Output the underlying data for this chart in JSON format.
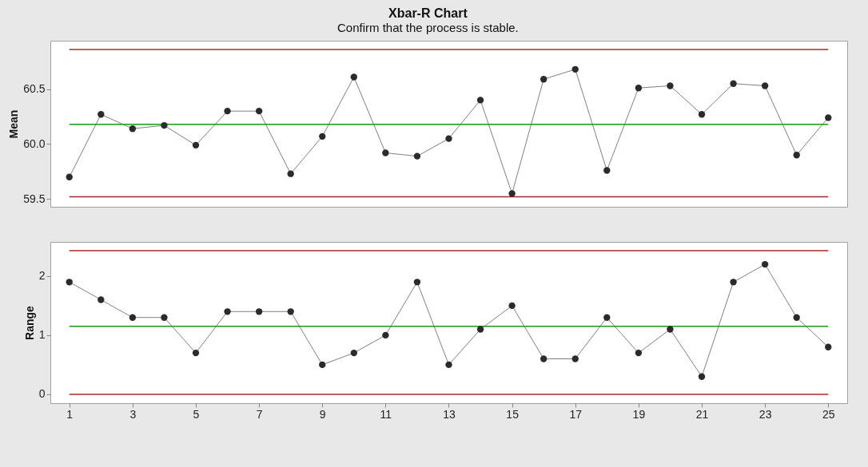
{
  "chart_data": [
    {
      "type": "line",
      "title": "Xbar-R Chart",
      "subtitle": "Confirm that the process is stable.",
      "ylabel": "Mean",
      "x": [
        1,
        2,
        3,
        4,
        5,
        6,
        7,
        8,
        9,
        10,
        11,
        12,
        13,
        14,
        15,
        16,
        17,
        18,
        19,
        20,
        21,
        22,
        23,
        24,
        25
      ],
      "series": [
        {
          "color": "#2b2b2b",
          "values": [
            59.7,
            60.27,
            60.14,
            60.17,
            59.99,
            60.3,
            60.3,
            59.73,
            60.07,
            60.61,
            59.92,
            59.89,
            60.05,
            60.4,
            59.55,
            60.59,
            60.68,
            59.76,
            60.51,
            60.53,
            60.27,
            60.55,
            60.53,
            59.9,
            60.24
          ]
        }
      ],
      "xlim": [
        0.4,
        25.6
      ],
      "xticks": [
        1,
        3,
        5,
        7,
        9,
        11,
        13,
        15,
        17,
        19,
        21,
        23,
        25
      ],
      "ylim": [
        59.43,
        60.94
      ],
      "yticks": [
        {
          "value": 59.5,
          "label": "59.5"
        },
        {
          "value": 60,
          "label": "60.0"
        },
        {
          "value": 60.5,
          "label": "60.5"
        }
      ],
      "ref_lines": [
        {
          "axis": "y",
          "value": 60.86,
          "color": "#a52a2a"
        },
        {
          "axis": "y",
          "value": 60.18,
          "color": "#1a9a1a"
        },
        {
          "axis": "y",
          "value": 59.52,
          "color": "#a52a2a"
        }
      ],
      "marker": "circle",
      "tick_labels": "y",
      "grid": false
    },
    {
      "type": "line",
      "ylabel": "Range",
      "x": [
        1,
        2,
        3,
        4,
        5,
        6,
        7,
        8,
        9,
        10,
        11,
        12,
        13,
        14,
        15,
        16,
        17,
        18,
        19,
        20,
        21,
        22,
        23,
        24,
        25
      ],
      "series": [
        {
          "color": "#2b2b2b",
          "values": [
            1.9,
            1.6,
            1.3,
            1.3,
            0.7,
            1.4,
            1.4,
            1.4,
            0.5,
            0.7,
            1.0,
            1.9,
            0.5,
            1.1,
            1.5,
            0.6,
            0.6,
            1.3,
            0.7,
            1.1,
            0.3,
            1.9,
            2.2,
            1.3,
            0.8
          ]
        }
      ],
      "xlim": [
        0.4,
        25.6
      ],
      "xticks": [
        1,
        3,
        5,
        7,
        9,
        11,
        13,
        15,
        17,
        19,
        21,
        23,
        25
      ],
      "ylim": [
        -0.15,
        2.58
      ],
      "yticks": [
        0,
        1,
        2
      ],
      "ref_lines": [
        {
          "axis": "y",
          "value": 2.43,
          "color": "#a52a2a"
        },
        {
          "axis": "y",
          "value": 1.15,
          "color": "#1a9a1a"
        },
        {
          "axis": "y",
          "value": 0,
          "color": "#a52a2a"
        }
      ],
      "marker": "circle",
      "grid": false
    }
  ]
}
